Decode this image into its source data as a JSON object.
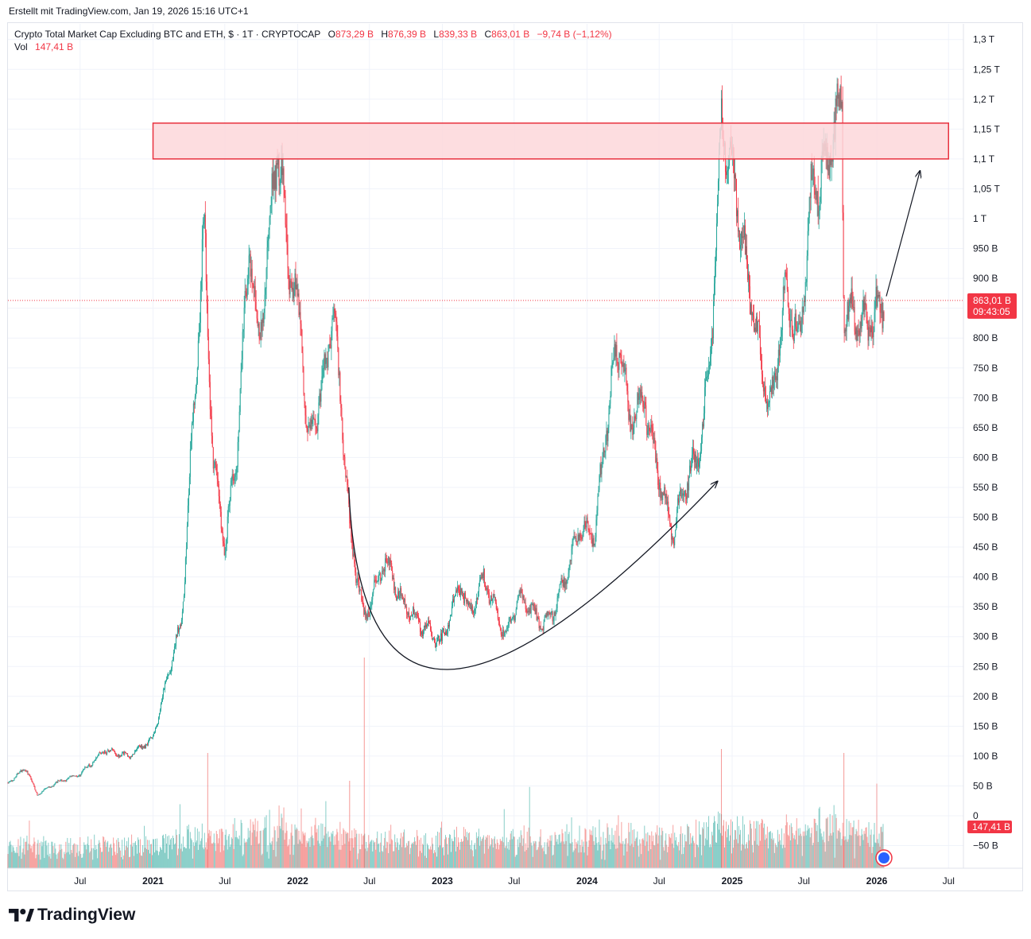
{
  "header": {
    "created_text": "Erstellt mit TradingView.com, Jan 19, 2026 15:16 UTC+1"
  },
  "legend": {
    "symbol": "Crypto Total Market Cap Excluding BTC and ETH, $ · 1T · CRYPTOCAP",
    "o_label": "O",
    "o_value": "873,29 B",
    "h_label": "H",
    "h_value": "876,39 B",
    "l_label": "L",
    "l_value": "839,33 B",
    "c_label": "C",
    "c_value": "863,01 B",
    "change": "−9,74 B (−1,12%)",
    "vol_label": "Vol",
    "vol_value": "147,41 B"
  },
  "price_badge": {
    "value": "863,01 B",
    "countdown": "09:43:05"
  },
  "vol_badge": {
    "value": "147,41 B"
  },
  "footer": {
    "brand": "TradingView"
  },
  "colors": {
    "up": "#26a69a",
    "down": "#f23645",
    "zone_fill": "#fdd7db",
    "zone_stroke": "#e8313f",
    "text": "#131722"
  },
  "chart_data": {
    "type": "candlestick",
    "title": "Crypto Total Market Cap Excluding BTC and ETH, $ · 1T · CRYPTOCAP",
    "y_axis": {
      "ticks": [
        "1,3 T",
        "1,25 T",
        "1,2 T",
        "1,15 T",
        "1,1 T",
        "1,05 T",
        "1 T",
        "950 B",
        "900 B",
        "850 B",
        "800 B",
        "750 B",
        "700 B",
        "650 B",
        "600 B",
        "550 B",
        "500 B",
        "450 B",
        "400 B",
        "350 B",
        "300 B",
        "250 B",
        "200 B",
        "150 B",
        "100 B",
        "50 B",
        "0",
        "−50 B"
      ],
      "tick_values": [
        1300,
        1250,
        1200,
        1150,
        1100,
        1050,
        1000,
        950,
        900,
        850,
        800,
        750,
        700,
        650,
        600,
        550,
        500,
        450,
        400,
        350,
        300,
        250,
        200,
        150,
        100,
        50,
        0,
        -50
      ],
      "unit": "B",
      "last_price": 863.01
    },
    "x_axis": {
      "ticks": [
        "Jul",
        "2021",
        "Jul",
        "2022",
        "Jul",
        "2023",
        "Jul",
        "2024",
        "Jul",
        "2025",
        "Jul",
        "2026",
        "Jul"
      ],
      "tick_dates": [
        "2020-07-01",
        "2021-01-01",
        "2021-07-01",
        "2022-01-01",
        "2022-07-01",
        "2023-01-01",
        "2023-07-01",
        "2024-01-01",
        "2024-07-01",
        "2025-01-01",
        "2025-07-01",
        "2026-01-01",
        "2026-07-01"
      ],
      "bold": [
        false,
        true,
        false,
        true,
        false,
        true,
        false,
        true,
        false,
        true,
        false,
        true,
        false
      ]
    },
    "series": [
      {
        "type": "price",
        "points": [
          [
            "2020-01-01",
            55
          ],
          [
            "2020-02-15",
            80
          ],
          [
            "2020-03-15",
            35
          ],
          [
            "2020-05-01",
            55
          ],
          [
            "2020-07-01",
            70
          ],
          [
            "2020-09-01",
            110
          ],
          [
            "2020-11-01",
            100
          ],
          [
            "2021-01-01",
            130
          ],
          [
            "2021-02-10",
            240
          ],
          [
            "2021-03-15",
            330
          ],
          [
            "2021-04-15",
            700
          ],
          [
            "2021-05-10",
            980
          ],
          [
            "2021-06-01",
            600
          ],
          [
            "2021-07-01",
            450
          ],
          [
            "2021-08-01",
            620
          ],
          [
            "2021-09-01",
            960
          ],
          [
            "2021-09-25",
            780
          ],
          [
            "2021-11-10",
            1130
          ],
          [
            "2021-12-15",
            900
          ],
          [
            "2022-01-10",
            830
          ],
          [
            "2022-01-25",
            620
          ],
          [
            "2022-03-01",
            700
          ],
          [
            "2022-03-31",
            850
          ],
          [
            "2022-04-20",
            700
          ],
          [
            "2022-05-12",
            480
          ],
          [
            "2022-06-18",
            330
          ],
          [
            "2022-08-10",
            430
          ],
          [
            "2022-09-20",
            360
          ],
          [
            "2022-11-10",
            320
          ],
          [
            "2022-12-30",
            290
          ],
          [
            "2023-02-15",
            390
          ],
          [
            "2023-03-10",
            340
          ],
          [
            "2023-04-15",
            400
          ],
          [
            "2023-06-10",
            300
          ],
          [
            "2023-07-15",
            370
          ],
          [
            "2023-09-10",
            320
          ],
          [
            "2023-10-15",
            350
          ],
          [
            "2023-12-15",
            480
          ],
          [
            "2024-01-20",
            470
          ],
          [
            "2024-03-01",
            720
          ],
          [
            "2024-03-25",
            800
          ],
          [
            "2024-04-15",
            660
          ],
          [
            "2024-05-25",
            700
          ],
          [
            "2024-06-20",
            600
          ],
          [
            "2024-08-05",
            470
          ],
          [
            "2024-09-01",
            550
          ],
          [
            "2024-10-15",
            620
          ],
          [
            "2024-11-10",
            800
          ],
          [
            "2024-12-05",
            1160
          ],
          [
            "2025-01-10",
            1050
          ],
          [
            "2025-02-05",
            920
          ],
          [
            "2025-03-10",
            780
          ],
          [
            "2025-04-08",
            680
          ],
          [
            "2025-05-15",
            880
          ],
          [
            "2025-06-20",
            790
          ],
          [
            "2025-07-20",
            1050
          ],
          [
            "2025-08-20",
            1080
          ],
          [
            "2025-09-20",
            1160
          ],
          [
            "2025-10-05",
            1190
          ],
          [
            "2025-10-10",
            850
          ],
          [
            "2025-11-20",
            820
          ],
          [
            "2025-12-20",
            830
          ],
          [
            "2026-01-19",
            863
          ]
        ]
      },
      {
        "type": "volume",
        "approx_range": [
          0,
          270
        ],
        "peak": 270
      }
    ],
    "annotations": [
      {
        "type": "rectangle",
        "x": [
          "2021-01-01",
          "2026-07-01"
        ],
        "y": [
          1100,
          1160
        ]
      },
      {
        "type": "curve-arrow",
        "points": [
          [
            "2022-05-10",
            550
          ],
          [
            "2023-01-15",
            245
          ],
          [
            "2024-11-25",
            560
          ]
        ]
      },
      {
        "type": "arrow",
        "points": [
          [
            "2026-01-25",
            870
          ],
          [
            "2026-04-20",
            1080
          ]
        ]
      }
    ],
    "grid": true,
    "legend_position": "top-left"
  }
}
